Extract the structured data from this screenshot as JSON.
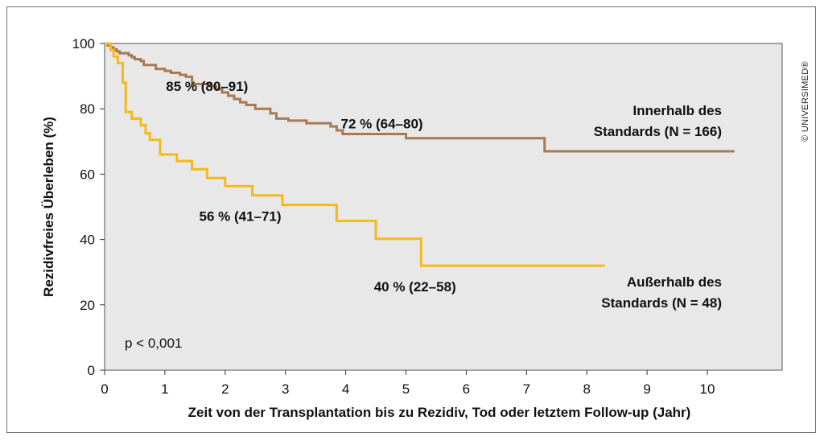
{
  "chart_data": {
    "type": "line",
    "step": true,
    "xlabel": "Zeit von der Transplantation bis zu Rezidiv, Tod oder letztem Follow-up (Jahr)",
    "ylabel": "Rezidivfreies Überleben (%)",
    "xlim": [
      0,
      11
    ],
    "ylim": [
      0,
      100
    ],
    "xticks": [
      0,
      1,
      2,
      3,
      4,
      5,
      6,
      7,
      8,
      9,
      10
    ],
    "yticks": [
      0,
      20,
      40,
      60,
      80,
      100
    ],
    "plot_background": "#e8e8e8",
    "series": [
      {
        "name_lines": [
          "Innerhalb des",
          "Standards (N = 166)"
        ],
        "color": "#a67a55",
        "points": [
          [
            0,
            100
          ],
          [
            0.05,
            99.4
          ],
          [
            0.1,
            98.8
          ],
          [
            0.15,
            98.2
          ],
          [
            0.2,
            97.6
          ],
          [
            0.25,
            97
          ],
          [
            0.4,
            96.4
          ],
          [
            0.45,
            95.8
          ],
          [
            0.5,
            95.2
          ],
          [
            0.6,
            94.6
          ],
          [
            0.65,
            93.4
          ],
          [
            0.85,
            92.2
          ],
          [
            1.0,
            91.6
          ],
          [
            1.1,
            91.0
          ],
          [
            1.25,
            90.4
          ],
          [
            1.35,
            89.8
          ],
          [
            1.45,
            87.6
          ],
          [
            1.75,
            87.0
          ],
          [
            1.85,
            86.0
          ],
          [
            1.95,
            85.0
          ],
          [
            2.05,
            84.0
          ],
          [
            2.15,
            83.0
          ],
          [
            2.25,
            82.0
          ],
          [
            2.35,
            81.2
          ],
          [
            2.5,
            80.0
          ],
          [
            2.75,
            78.6
          ],
          [
            2.85,
            77.0
          ],
          [
            3.05,
            76.4
          ],
          [
            3.35,
            75.6
          ],
          [
            3.75,
            74.6
          ],
          [
            3.85,
            73.4
          ],
          [
            3.95,
            72.3
          ],
          [
            4.95,
            72.3
          ],
          [
            5.0,
            71.0
          ],
          [
            7.25,
            71.0
          ],
          [
            7.3,
            67.0
          ],
          [
            10.45,
            67.0
          ]
        ],
        "annotations": [
          {
            "x": 1.5,
            "y": 85,
            "text": "85 % (80–91)"
          },
          {
            "x": 4.5,
            "y": 72,
            "text": "72 % (64–80)"
          }
        ]
      },
      {
        "name_lines": [
          "Außerhalb des",
          "Standards (N = 48)"
        ],
        "color": "#f5b918",
        "points": [
          [
            0,
            100
          ],
          [
            0.1,
            98
          ],
          [
            0.15,
            96
          ],
          [
            0.22,
            94
          ],
          [
            0.3,
            88
          ],
          [
            0.35,
            79
          ],
          [
            0.45,
            77
          ],
          [
            0.6,
            75
          ],
          [
            0.68,
            72.5
          ],
          [
            0.75,
            70.5
          ],
          [
            0.92,
            66
          ],
          [
            1.2,
            64
          ],
          [
            1.45,
            61.5
          ],
          [
            1.7,
            58.8
          ],
          [
            2.0,
            56.3
          ],
          [
            2.45,
            53.5
          ],
          [
            2.95,
            50.6
          ],
          [
            3.85,
            45.7
          ],
          [
            4.5,
            40.2
          ],
          [
            5.25,
            32
          ],
          [
            8.3,
            32
          ]
        ],
        "annotations": [
          {
            "x": 2.2,
            "y": 56,
            "text": "56 % (41–71)"
          },
          {
            "x": 5.0,
            "y": 40,
            "text": "40 % (22–58)"
          }
        ]
      }
    ],
    "pvalue": "p < 0,001"
  },
  "copyright": "© UNIVERSIMED®"
}
